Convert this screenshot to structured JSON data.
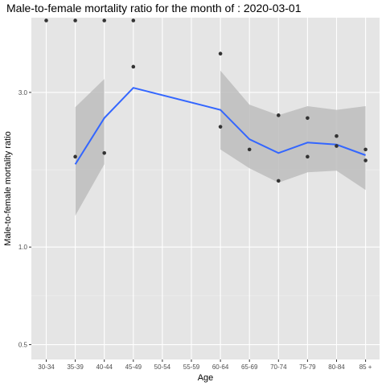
{
  "chart_data": {
    "type": "scatter",
    "title": "Male-to-female mortality ratio for the month of : 2020-03-01",
    "xlabel": "Age",
    "ylabel": "Male-to-female mortality ratio",
    "y_scale": "log",
    "ylim": [
      0.45,
      5.1
    ],
    "y_ticks": [
      0.5,
      1.0,
      3.0
    ],
    "y_tick_labels": [
      "0.5",
      "1.0",
      "3.0"
    ],
    "categories": [
      "30-34",
      "35-39",
      "40-44",
      "45-49",
      "50-54",
      "55-59",
      "60-64",
      "65-69",
      "70-74",
      "75-79",
      "80-84",
      "85 +"
    ],
    "grid": true,
    "legend": "none",
    "points": [
      {
        "x": "30-34",
        "y": 5.0
      },
      {
        "x": "35-39",
        "y": 5.0
      },
      {
        "x": "35-39",
        "y": 1.9
      },
      {
        "x": "40-44",
        "y": 5.0
      },
      {
        "x": "40-44",
        "y": 1.95
      },
      {
        "x": "45-49",
        "y": 5.0
      },
      {
        "x": "45-49",
        "y": 3.6
      },
      {
        "x": "60-64",
        "y": 3.95
      },
      {
        "x": "60-64",
        "y": 2.35
      },
      {
        "x": "65-69",
        "y": 2.0
      },
      {
        "x": "70-74",
        "y": 2.55
      },
      {
        "x": "70-74",
        "y": 1.6
      },
      {
        "x": "75-79",
        "y": 2.5
      },
      {
        "x": "75-79",
        "y": 1.9
      },
      {
        "x": "80-84",
        "y": 2.2
      },
      {
        "x": "80-84",
        "y": 2.05
      },
      {
        "x": "85 +",
        "y": 2.0
      },
      {
        "x": "85 +",
        "y": 1.85
      }
    ],
    "trend": {
      "x": [
        "35-39",
        "40-44",
        "45-49",
        "60-64",
        "65-69",
        "70-74",
        "75-79",
        "80-84",
        "85 +"
      ],
      "y": [
        1.8,
        2.5,
        3.1,
        2.65,
        2.15,
        1.95,
        2.1,
        2.07,
        1.92
      ],
      "lower": [
        1.25,
        1.8,
        null,
        2.0,
        1.75,
        1.58,
        1.7,
        1.72,
        1.5
      ],
      "upper": [
        2.7,
        3.3,
        null,
        3.5,
        2.75,
        2.55,
        2.72,
        2.65,
        2.72
      ]
    },
    "colors": {
      "panel": "#e5e5e5",
      "grid_major": "#ffffff",
      "grid_minor": "#f2f2f2",
      "trend_line": "#3366ff",
      "ribbon": "#bdbdbd",
      "point": "#333333"
    }
  }
}
